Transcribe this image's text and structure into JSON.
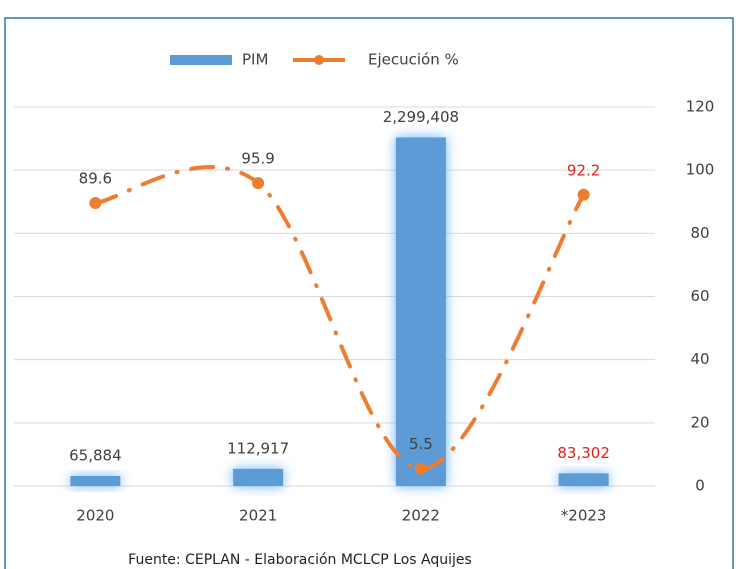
{
  "chart_data": {
    "type": "bar_line",
    "categories": [
      "2020",
      "2021",
      "2022",
      "*2023"
    ],
    "series": [
      {
        "name": "PIM",
        "type": "bar",
        "color": "#5b9bd5",
        "values": [
          65884,
          112917,
          2299408,
          83302
        ],
        "value_labels": [
          "65,884",
          "112,917",
          "2,299,408",
          "83,302"
        ],
        "value_label_colors": [
          "#404040",
          "#404040",
          "#404040",
          "#e0211b"
        ]
      },
      {
        "name": "Ejecución %",
        "type": "line",
        "axis": "y2",
        "color": "#ed7d31",
        "values": [
          89.6,
          95.9,
          5.5,
          92.2
        ],
        "value_label_colors": [
          "#404040",
          "#404040",
          "#404040",
          "#e0211b"
        ]
      }
    ],
    "ylim": [
      0,
      2500000
    ],
    "y2lim": [
      0,
      120
    ],
    "y2ticks": [
      0,
      20,
      40,
      60,
      80,
      100,
      120
    ],
    "grid": true,
    "legend": "top",
    "source": "Fuente: CEPLAN - Elaboración MCLCP Los Aquijes"
  }
}
